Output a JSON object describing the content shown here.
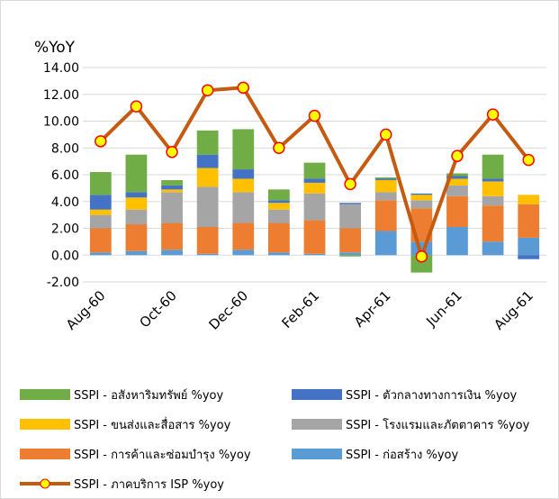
{
  "chart_data": {
    "type": "bar",
    "y_axis_title": "%YoY",
    "categories": [
      "Aug-60",
      null,
      "Oct-60",
      null,
      "Dec-60",
      null,
      "Feb-61",
      null,
      "Apr-61",
      null,
      "Jun-61",
      null,
      "Aug-61"
    ],
    "series": [
      {
        "name": "SSPI - ก่อสร้าง %yoy",
        "color": "#5b9bd5",
        "values": [
          0.2,
          0.3,
          0.4,
          0.1,
          0.4,
          0.2,
          0.1,
          0.2,
          1.8,
          1.0,
          2.1,
          1.0,
          1.3
        ]
      },
      {
        "name": "SSPI - การค้าและซ่อมบำรุง %yoy",
        "color": "#ed7d31",
        "values": [
          1.8,
          2.0,
          2.0,
          2.0,
          2.0,
          2.2,
          2.5,
          1.8,
          2.3,
          2.5,
          2.3,
          2.7,
          2.5
        ]
      },
      {
        "name": "SSPI - โรงแรมและภัตตาคาร %yoy",
        "color": "#a5a5a5",
        "values": [
          1.0,
          1.1,
          2.3,
          3.0,
          2.3,
          1.0,
          2.0,
          1.8,
          0.6,
          0.6,
          0.8,
          0.7,
          0
        ]
      },
      {
        "name": "SSPI - ขนส่งและสื่อสาร %yoy",
        "color": "#ffc000",
        "values": [
          0.4,
          0.9,
          0.2,
          1.4,
          1.0,
          0.5,
          0.8,
          0,
          0.9,
          0.4,
          0.5,
          1.1,
          0.7
        ]
      },
      {
        "name": "SSPI - ตัวกลางทางการเงิน %yoy",
        "color": "#4472c4",
        "values": [
          1.1,
          0.4,
          0.3,
          1.0,
          0.7,
          0.2,
          0.3,
          0.1,
          0.1,
          0.1,
          0.2,
          0.2,
          -0.3
        ]
      },
      {
        "name": "SSPI - อสังหาริมทรัพย์ %yoy",
        "color": "#70ad47",
        "values": [
          1.7,
          2.8,
          0.4,
          1.8,
          3.0,
          0.8,
          1.2,
          -0.1,
          0.1,
          -1.3,
          0.2,
          1.8,
          0
        ]
      },
      {
        "name": "SSPI - ภาคบริการ ISP %yoy",
        "color": "#c55a11",
        "type": "line",
        "values": [
          8.5,
          11.1,
          7.7,
          12.3,
          12.5,
          8.0,
          10.4,
          5.3,
          9.0,
          -0.1,
          7.4,
          10.5,
          7.1
        ]
      }
    ],
    "ylim": [
      -2,
      14
    ],
    "yticks": [
      {
        "value": -2,
        "label": "-2.00"
      },
      {
        "value": 0,
        "label": "0.00"
      },
      {
        "value": 2,
        "label": "2.00"
      },
      {
        "value": 4,
        "label": "4.00"
      },
      {
        "value": 6,
        "label": "6.00"
      },
      {
        "value": 8,
        "label": "8.00"
      },
      {
        "value": 10,
        "label": "10.00"
      },
      {
        "value": 12,
        "label": "12.00"
      },
      {
        "value": 14,
        "label": "14.00"
      }
    ],
    "grid": true
  }
}
